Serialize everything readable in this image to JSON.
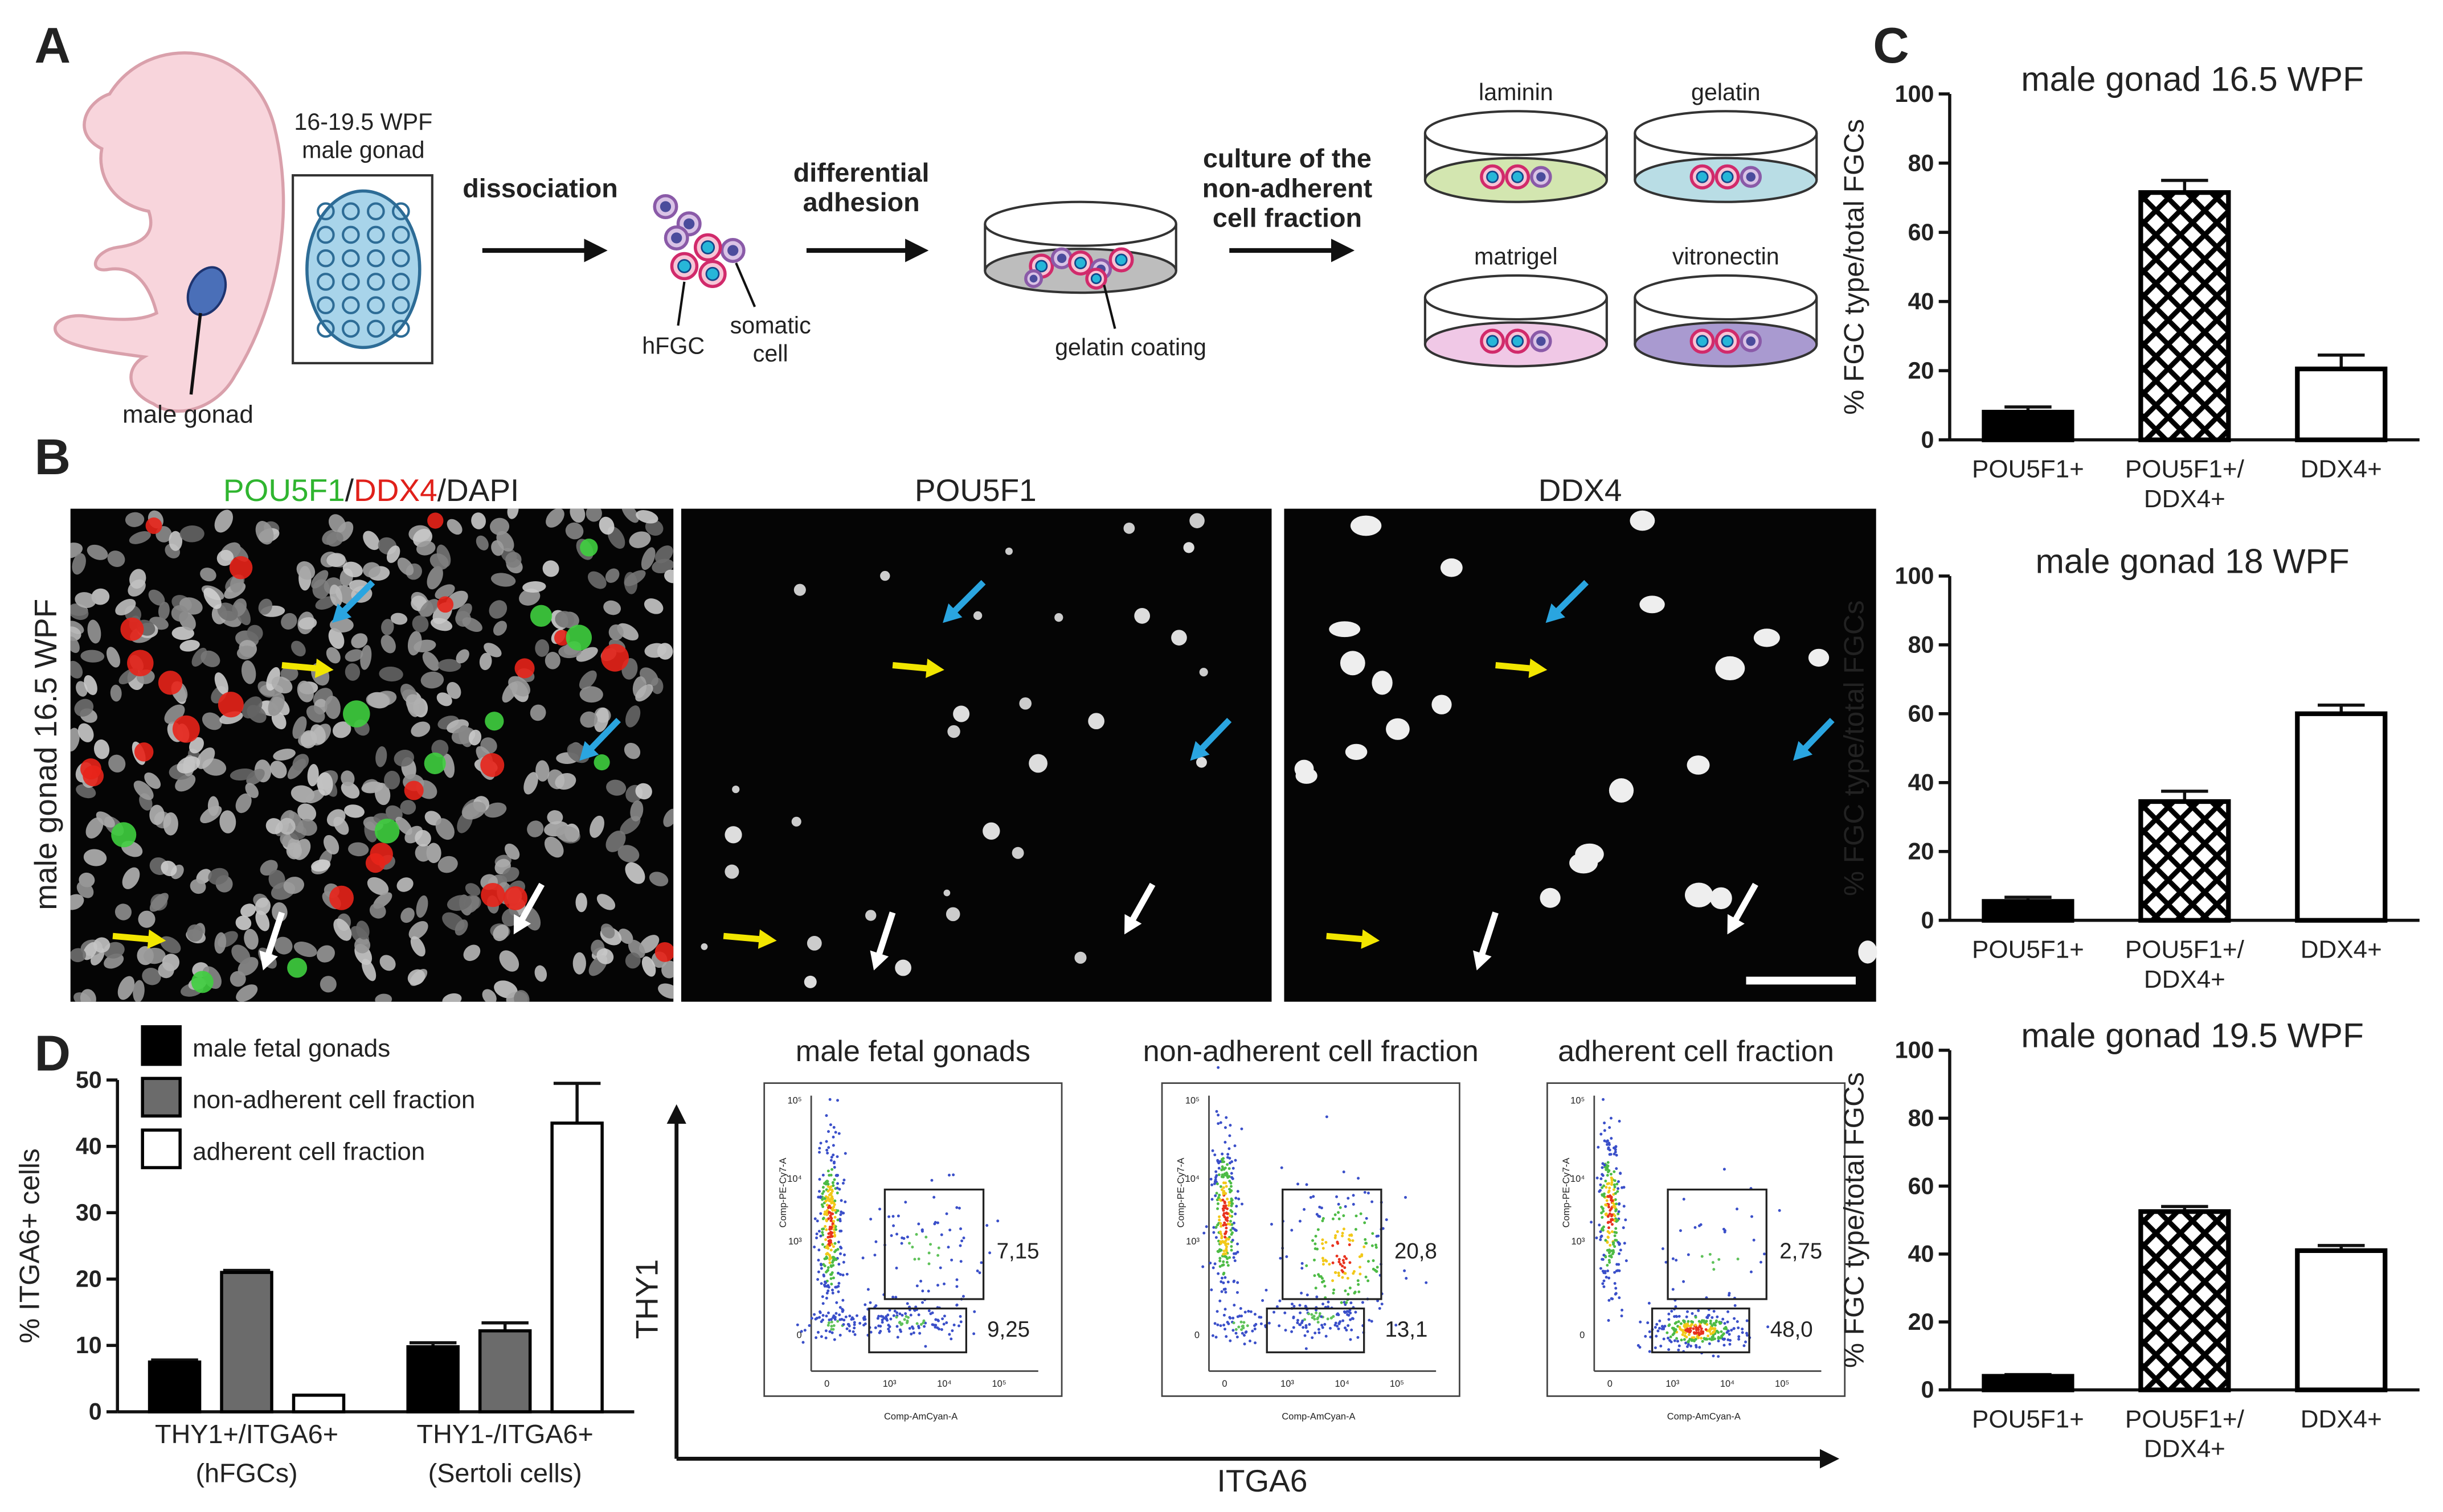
{
  "panel_labels": [
    "A",
    "B",
    "C",
    "D"
  ],
  "diagram": {
    "gonad_stage": [
      "16-19.5 WPF",
      "male gonad"
    ],
    "gonad_label": "male gonad",
    "step1": "dissociation",
    "step2": [
      "differential",
      "adhesion"
    ],
    "step3": [
      "culture of the",
      "non-adherent",
      "cell fraction"
    ],
    "hfgc": "hFGC",
    "somatic": [
      "somatic",
      "cell"
    ],
    "coating": "gelatin coating",
    "coatings": [
      "laminin",
      "gelatin",
      "matrigel",
      "vitronectin"
    ]
  },
  "images": {
    "side_label": "male gonad 16.5 WPF",
    "merge_title": [
      "POU5F1",
      "/",
      "DDX4",
      "/DAPI"
    ],
    "titles": [
      "POU5F1",
      "DDX4"
    ]
  },
  "flow": {
    "y_axis": "THY1",
    "x_axis": "ITGA6",
    "y_param": "Comp-PE-Cy7-A",
    "x_param": "Comp-AmCyan-A",
    "yticks": [
      "10⁵",
      "10⁴",
      "10³",
      "0"
    ],
    "xticks": [
      "0",
      "10³",
      "10⁴",
      "10⁵"
    ],
    "plots": [
      {
        "title": "male fetal gonads",
        "gates": [
          "7,15",
          "9,25"
        ]
      },
      {
        "title": "non-adherent cell fraction",
        "gates": [
          "20,8",
          "13,1"
        ]
      },
      {
        "title": "adherent cell fraction",
        "gates": [
          "2,75",
          "48,0"
        ]
      }
    ]
  },
  "chart_data": [
    {
      "type": "bar",
      "title": "male gonad 16.5 WPF",
      "ylabel": "% FGC type/total FGCs",
      "categories": [
        "POU5F1+",
        "POU5F1+/ DDX4+",
        "DDX4+"
      ],
      "values": [
        8,
        71.5,
        20.5
      ],
      "errors": [
        1.5,
        3.5,
        4
      ],
      "colors": [
        "#000000",
        "#000000",
        "#ffffff"
      ],
      "hatch": [
        false,
        true,
        false
      ],
      "ylim": [
        0,
        100
      ],
      "yticks": [
        0,
        20,
        40,
        60,
        80,
        100
      ]
    },
    {
      "type": "bar",
      "title": "male gonad 18 WPF",
      "ylabel": "% FGC type/total FGCs",
      "categories": [
        "POU5F1+",
        "POU5F1+/ DDX4+",
        "DDX4+"
      ],
      "values": [
        5.5,
        34.5,
        60
      ],
      "errors": [
        1.2,
        3,
        2.5
      ],
      "colors": [
        "#000000",
        "#000000",
        "#ffffff"
      ],
      "hatch": [
        false,
        true,
        false
      ],
      "ylim": [
        0,
        100
      ],
      "yticks": [
        0,
        20,
        40,
        60,
        80,
        100
      ]
    },
    {
      "type": "bar",
      "title": "male gonad 19.5 WPF",
      "ylabel": "% FGC type/total FGCs",
      "categories": [
        "POU5F1+",
        "POU5F1+/ DDX4+",
        "DDX4+"
      ],
      "values": [
        4,
        52.5,
        41
      ],
      "errors": [
        0.5,
        1.5,
        1.5
      ],
      "colors": [
        "#000000",
        "#000000",
        "#ffffff"
      ],
      "hatch": [
        false,
        true,
        false
      ],
      "ylim": [
        0,
        100
      ],
      "yticks": [
        0,
        20,
        40,
        60,
        80,
        100
      ]
    },
    {
      "type": "grouped_bar",
      "ylabel": "% ITGA6+ cells",
      "categories": [
        "THY1+/ITGA6+ (hFGCs)",
        "THY1-/ITGA6+ (Sertoli cells)"
      ],
      "series": [
        {
          "name": "male fetal gonads",
          "color": "#000000",
          "values": [
            7.5,
            9.8
          ],
          "errors": [
            0.3,
            0.6
          ]
        },
        {
          "name": "non-adherent cell fraction",
          "color": "#6b6b6b",
          "values": [
            21,
            12.2
          ],
          "errors": [
            0.3,
            1.2
          ]
        },
        {
          "name": "adherent cell fraction",
          "color": "#ffffff",
          "values": [
            2.5,
            43.5
          ],
          "errors": [
            0,
            6
          ]
        }
      ],
      "ylim": [
        0,
        50
      ],
      "yticks": [
        0,
        10,
        20,
        30,
        40,
        50
      ],
      "legend": "top-left"
    }
  ]
}
